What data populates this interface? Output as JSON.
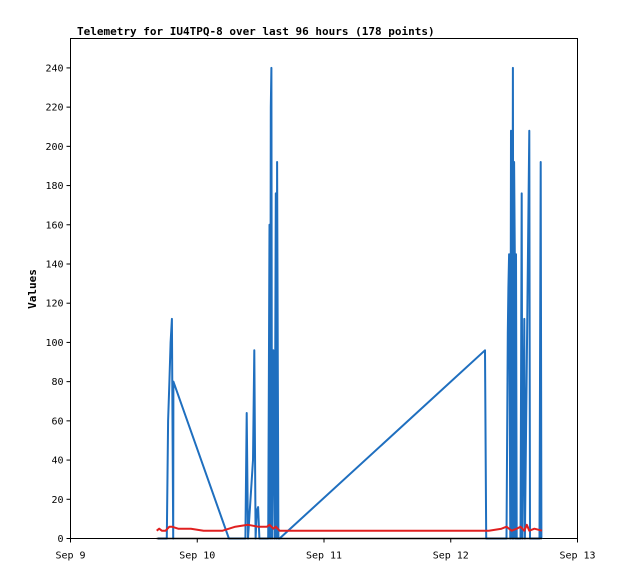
{
  "chart_data": {
    "type": "line",
    "title": "Telemetry for IU4TPQ-8 over last 96 hours (178 points)",
    "ylabel": "Values",
    "xlabel": "",
    "x_ticks": [
      "Sep 9",
      "Sep 10",
      "Sep 11",
      "Sep 12",
      "Sep 13"
    ],
    "x_range_days": [
      9,
      13
    ],
    "ylim": [
      0,
      255
    ],
    "y_ticks": [
      0,
      20,
      40,
      60,
      80,
      100,
      120,
      140,
      160,
      180,
      200,
      220,
      240
    ],
    "grid": false,
    "series": [
      {
        "color": "#1f6fbf",
        "points": [
          [
            9.69,
            0
          ],
          [
            9.72,
            0
          ],
          [
            9.74,
            0
          ],
          [
            9.76,
            0
          ],
          [
            9.77,
            60
          ],
          [
            9.78,
            80
          ],
          [
            9.79,
            100
          ],
          [
            9.8,
            112
          ],
          [
            9.805,
            60
          ],
          [
            9.81,
            0
          ],
          [
            9.812,
            80
          ],
          [
            10.25,
            0
          ],
          [
            10.38,
            0
          ],
          [
            10.39,
            64
          ],
          [
            10.4,
            0
          ],
          [
            10.44,
            40
          ],
          [
            10.45,
            96
          ],
          [
            10.46,
            0
          ],
          [
            10.47,
            14
          ],
          [
            10.48,
            16
          ],
          [
            10.49,
            0
          ],
          [
            10.56,
            0
          ],
          [
            10.57,
            160
          ],
          [
            10.575,
            0
          ],
          [
            10.58,
            220
          ],
          [
            10.585,
            240
          ],
          [
            10.59,
            0
          ],
          [
            10.6,
            96
          ],
          [
            10.61,
            0
          ],
          [
            10.62,
            176
          ],
          [
            10.625,
            0
          ],
          [
            10.63,
            192
          ],
          [
            10.64,
            0
          ],
          [
            10.65,
            0
          ],
          [
            12.27,
            96
          ],
          [
            12.28,
            0
          ],
          [
            12.44,
            0
          ],
          [
            12.45,
            105
          ],
          [
            12.455,
            128
          ],
          [
            12.46,
            145
          ],
          [
            12.47,
            0
          ],
          [
            12.475,
            208
          ],
          [
            12.48,
            120
          ],
          [
            12.485,
            0
          ],
          [
            12.49,
            240
          ],
          [
            12.495,
            0
          ],
          [
            12.5,
            192
          ],
          [
            12.505,
            145
          ],
          [
            12.51,
            0
          ],
          [
            12.515,
            145
          ],
          [
            12.52,
            0
          ],
          [
            12.55,
            0
          ],
          [
            12.56,
            176
          ],
          [
            12.565,
            0
          ],
          [
            12.58,
            112
          ],
          [
            12.585,
            0
          ],
          [
            12.62,
            208
          ],
          [
            12.625,
            0
          ],
          [
            12.7,
            0
          ],
          [
            12.71,
            192
          ],
          [
            12.715,
            0
          ]
        ]
      },
      {
        "color": "#e02020",
        "points": [
          [
            9.68,
            4
          ],
          [
            9.7,
            5
          ],
          [
            9.72,
            4
          ],
          [
            9.75,
            4
          ],
          [
            9.78,
            6
          ],
          [
            9.8,
            6
          ],
          [
            9.85,
            5
          ],
          [
            9.95,
            5
          ],
          [
            10.05,
            4
          ],
          [
            10.2,
            4
          ],
          [
            10.3,
            6
          ],
          [
            10.4,
            7
          ],
          [
            10.48,
            6
          ],
          [
            10.55,
            6
          ],
          [
            10.57,
            7
          ],
          [
            10.6,
            5
          ],
          [
            10.62,
            6
          ],
          [
            10.65,
            4
          ],
          [
            10.8,
            4
          ],
          [
            11.2,
            4
          ],
          [
            11.8,
            4
          ],
          [
            12.3,
            4
          ],
          [
            12.4,
            5
          ],
          [
            12.44,
            6
          ],
          [
            12.48,
            4
          ],
          [
            12.52,
            5
          ],
          [
            12.55,
            6
          ],
          [
            12.58,
            4
          ],
          [
            12.6,
            7
          ],
          [
            12.62,
            4
          ],
          [
            12.66,
            5
          ],
          [
            12.72,
            4
          ]
        ]
      },
      {
        "color": "#000000",
        "points": [
          [
            9.68,
            0
          ],
          [
            12.72,
            0
          ]
        ]
      }
    ]
  }
}
